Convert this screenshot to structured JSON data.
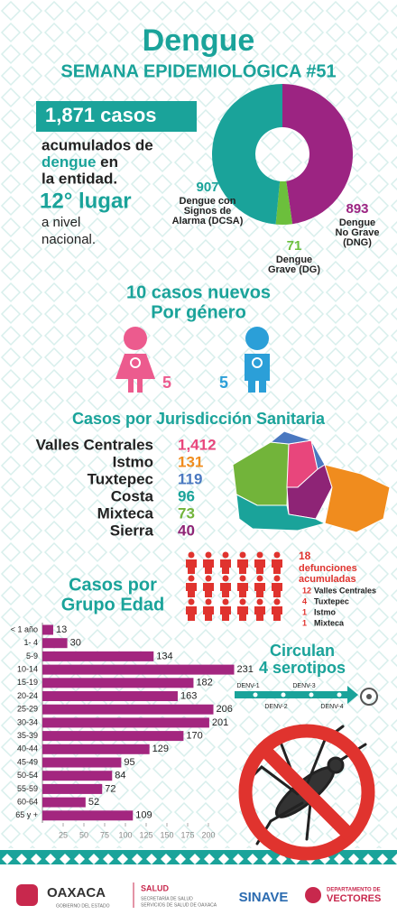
{
  "header": {
    "title": "Dengue",
    "subtitle": "SEMANA EPIDEMIOLÓGICA #51"
  },
  "summary": {
    "cases": "1,871 casos",
    "line1": "acumulados de",
    "highlight": "dengue",
    "line2_rest": " en",
    "line3": "la entidad.",
    "rank": "12° lugar",
    "rank_line1": "a nivel",
    "rank_line2": "nacional."
  },
  "gender": {
    "title1": "10 casos nuevos",
    "title2": "Por género",
    "female": 5,
    "male": 5,
    "female_color": "#ec5b8e",
    "male_color": "#2b9fd8"
  },
  "jurisdictions": {
    "title": "Casos por Jurisdicción Sanitaria",
    "names": [
      "Valles Centrales",
      "Istmo",
      "Tuxtepec",
      "Costa",
      "Mixteca",
      "Sierra"
    ],
    "values": [
      1412,
      131,
      119,
      96,
      73,
      40
    ],
    "value_labels": [
      "1,412",
      "131",
      "119",
      "96",
      "73",
      "40"
    ],
    "colors": [
      "#e8467c",
      "#f08c1e",
      "#4a78c0",
      "#1aa39a",
      "#72b43a",
      "#8e2476"
    ]
  },
  "deaths": {
    "total": 18,
    "label1": "defunciones",
    "label2": "acumuladas",
    "names": [
      "Valles Centrales",
      "Tuxtepec",
      "Istmo",
      "Mixteca"
    ],
    "values": [
      12,
      4,
      1,
      1
    ],
    "color": "#e0332e"
  },
  "serotypes": {
    "title1": "Circulan",
    "title2": "4 serotipos",
    "names": [
      "DENV-1",
      "DENV-2",
      "DENV-3",
      "DENV-4"
    ]
  },
  "footer": {
    "state": "OAXACA",
    "state_sub": "GOBIERNO DEL ESTADO",
    "health": "SALUD",
    "health_sub1": "SECRETARÍA DE SALUD",
    "health_sub2": "SERVICIOS DE SALUD DE OAXACA",
    "sinave": "SINAVE",
    "dept1": "DEPARTAMENTO DE",
    "dept2": "VECTORES"
  },
  "chart_data": [
    {
      "type": "pie",
      "donut": true,
      "categories": [
        "Dengue No Grave (DNG)",
        "Dengue Grave (DG)",
        "Dengue con Signos de Alarma (DCSA)"
      ],
      "label_lines": [
        [
          "Dengue",
          "No Grave",
          "(DNG)"
        ],
        [
          "Dengue",
          "Grave (DG)"
        ],
        [
          "Dengue con",
          "Signos de",
          "Alarma (DCSA)"
        ]
      ],
      "values": [
        893,
        71,
        907
      ],
      "colors": [
        "#9c2482",
        "#6cbf3c",
        "#1aa39a"
      ]
    },
    {
      "type": "bar",
      "orientation": "horizontal",
      "title": [
        "Casos por",
        "Grupo Edad"
      ],
      "categories": [
        "< 1 año",
        "1- 4",
        "5-9",
        "10-14",
        "15-19",
        "20-24",
        "25-29",
        "30-34",
        "35-39",
        "40-44",
        "45-49",
        "50-54",
        "55-59",
        "60-64",
        "65 y +"
      ],
      "values": [
        13,
        30,
        134,
        231,
        182,
        163,
        206,
        201,
        170,
        129,
        95,
        84,
        72,
        52,
        109
      ],
      "color": "#a3267f",
      "xlim": [
        0,
        250
      ],
      "xticks": [
        25,
        50,
        75,
        100,
        125,
        150,
        175,
        200
      ]
    }
  ]
}
